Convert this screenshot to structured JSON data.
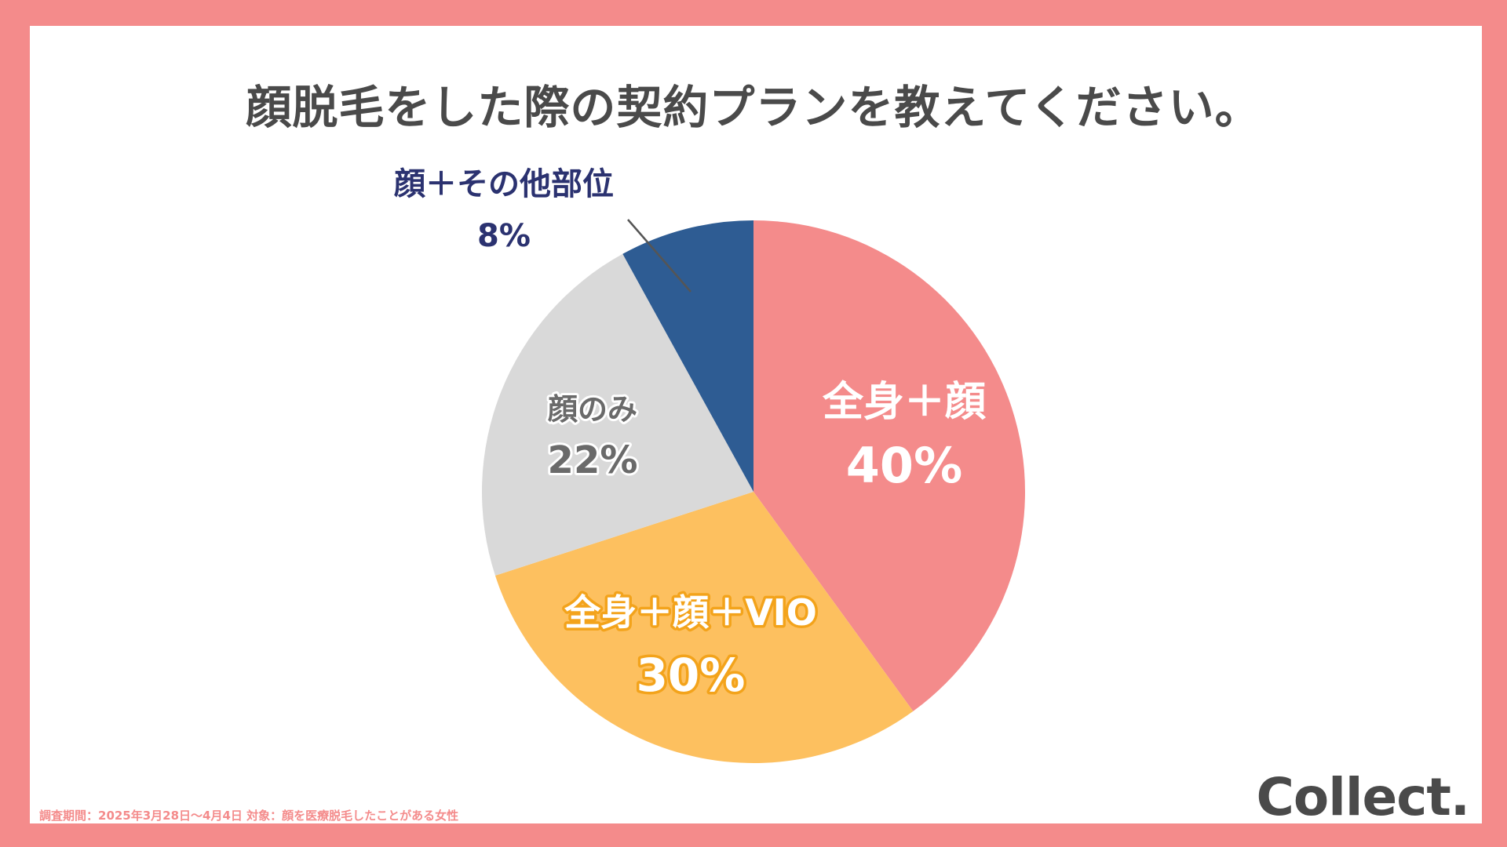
{
  "page": {
    "footnote": "調査期間：2025年3月28日〜4月4日 対象：顔を医療脱毛したことがある女性",
    "logo": "Collect."
  },
  "chart_data": {
    "type": "pie",
    "title": "顔脱毛をした際の契約プランを教えてください。",
    "slices": [
      {
        "label": "全身＋顔",
        "value": 40,
        "value_label": "40%",
        "color": "#f48b8b",
        "text_color": "#ffffff",
        "outline": "#f48b8b"
      },
      {
        "label": "全身＋顔＋VIO",
        "value": 30,
        "value_label": "30%",
        "color": "#fdc05f",
        "text_color": "#ffffff",
        "outline": "#f3a31b"
      },
      {
        "label": "顔のみ",
        "value": 22,
        "value_label": "22%",
        "color": "#d9d9d9",
        "text_color": "#6a6a6a",
        "outline": "#ffffff"
      },
      {
        "label": "顔＋その他部位",
        "value": 8,
        "value_label": "8%",
        "color": "#2e5c93",
        "text_color": "#2b3270",
        "outline": "none"
      }
    ],
    "start_angle": "12 o'clock",
    "direction": "clockwise"
  }
}
